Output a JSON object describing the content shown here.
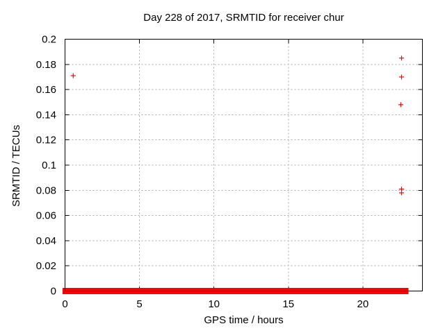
{
  "chart_data": {
    "type": "scatter",
    "title": "Day 228 of 2017, SRMTID for receiver chur",
    "xlabel": "GPS time / hours",
    "ylabel": "SRMTID / TECUs",
    "xlim": [
      0,
      24
    ],
    "ylim": [
      0,
      0.2
    ],
    "xticks": [
      0,
      5,
      10,
      15,
      20
    ],
    "xtick_labels": [
      "0",
      "5",
      "10",
      "15",
      "20"
    ],
    "yticks": [
      0,
      0.02,
      0.04,
      0.06,
      0.08,
      0.1,
      0.12,
      0.14,
      0.16,
      0.18,
      0.2
    ],
    "ytick_labels": [
      "0",
      "0.02",
      "0.04",
      "0.06",
      "0.08",
      "0.1",
      "0.12",
      "0.14",
      "0.16",
      "0.18",
      "0.2"
    ],
    "grid": true,
    "legend_position": "none",
    "marker": "plus",
    "marker_color": "#ff0000",
    "marker_size_px": 7,
    "grid_color": "#a8a8a8",
    "axis_color": "#000000",
    "series": [
      {
        "name": "SRMTID",
        "points": [
          {
            "x": 0.55,
            "y": 0.171
          },
          {
            "x": 22.6,
            "y": 0.185
          },
          {
            "x": 22.6,
            "y": 0.17
          },
          {
            "x": 22.55,
            "y": 0.148
          },
          {
            "x": 22.6,
            "y": 0.081
          },
          {
            "x": 22.6,
            "y": 0.078
          }
        ]
      }
    ],
    "baseline_band": {
      "y": 0,
      "x_start": 0,
      "x_end": 22.9,
      "description": "dense overlapping + markers at SRMTID ~ 0 across all epochs, forming a solid red bar along the x-axis"
    }
  }
}
